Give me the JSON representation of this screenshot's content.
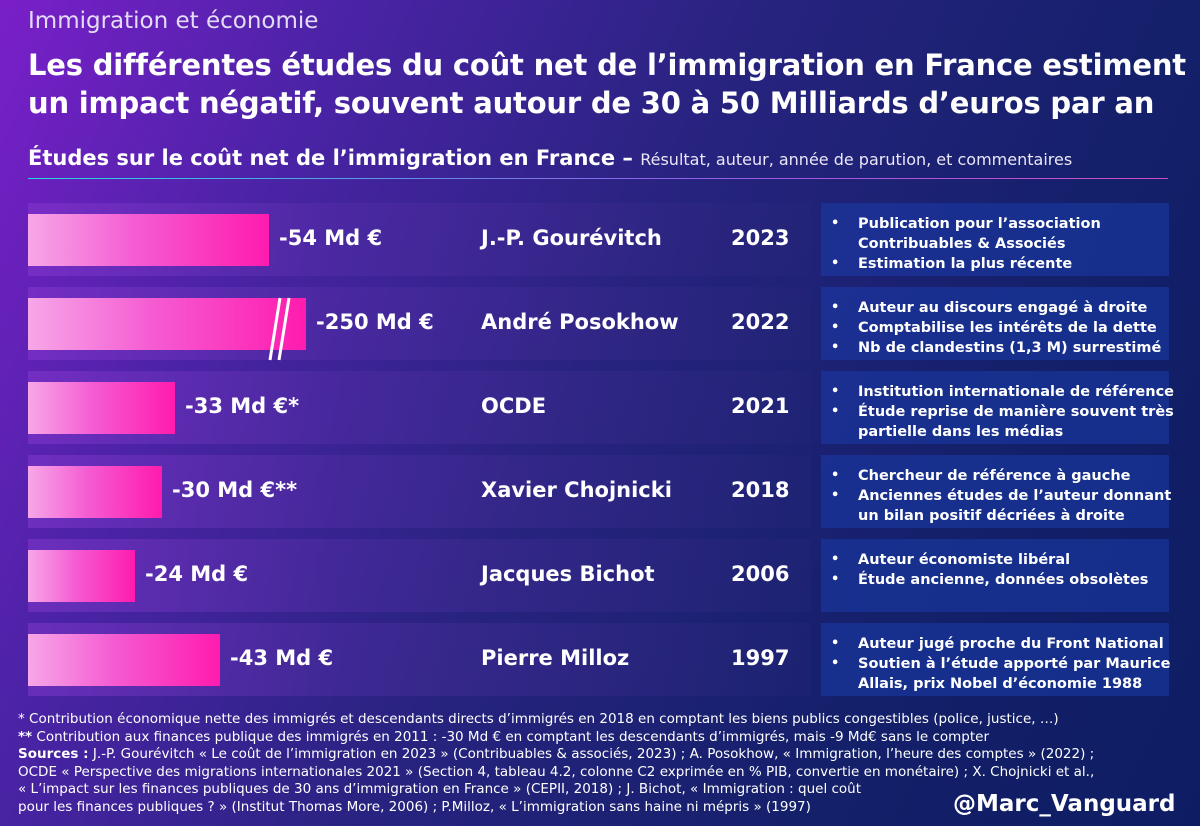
{
  "header": {
    "kicker": "Immigration et économie",
    "title": "Les différentes études du coût net de l’immigration en France estiment un impact négatif, souvent autour de 30 à 50 Milliards d’euros par an",
    "subtitle_main": "Études sur le coût net de l’immigration en France –",
    "subtitle_note": "Résultat, auteur, année de parution, et commentaires"
  },
  "colors": {
    "bar": "#ff1bae",
    "comment_box": "#1b3ca6",
    "background": "#14206a"
  },
  "chart_data": {
    "type": "bar",
    "orientation": "horizontal",
    "title": "Études sur le coût net de l’immigration en France",
    "unit": "Md €",
    "axis_break_on": "André Posokhow",
    "categories": [
      "J.-P. Gourévitch",
      "André Posokhow",
      "OCDE",
      "Xavier Chojnicki",
      "Jacques Bichot",
      "Pierre Milloz"
    ],
    "values": [
      -54,
      -250,
      -33,
      -30,
      -24,
      -43
    ],
    "value_labels": [
      "-54 Md €",
      "-250 Md €",
      "-33 Md €*",
      "-30 Md €**",
      "-24 Md €",
      "-43 Md €"
    ],
    "years": [
      "2023",
      "2022",
      "2021",
      "2018",
      "2006",
      "1997"
    ],
    "comments": [
      [
        "Publication pour l’association Contribuables & Associés",
        "Estimation la plus récente"
      ],
      [
        "Auteur au discours engagé à droite",
        "Comptabilise les intérêts de la dette",
        "Nb de clandestins (1,3 M) surrestimé"
      ],
      [
        "Institution internationale de référence",
        "Étude reprise de manière souvent très partielle dans les médias"
      ],
      [
        "Chercheur de référence à gauche",
        "Anciennes études de l’auteur donnant un bilan positif décriées à droite"
      ],
      [
        "Auteur économiste libéral",
        "Étude ancienne, données obsolètes"
      ],
      [
        "Auteur jugé proche du Front National",
        "Soutien à l’étude apporté par Maurice Allais, prix Nobel d’économie 1988"
      ]
    ]
  },
  "footer": {
    "note1": "* Contribution économique nette des immigrés et descendants directs d’immigrés en 2018 en comptant les biens publics congestibles (police, justice, …)",
    "note2_mark": "**",
    "note2": " Contribution aux finances publique des immigrés en 2011 : -30 Md € en comptant les descendants d’immigrés, mais -9 Md€ sans le compter",
    "sources_label": "Sources :",
    "sources_1": " J.-P. Gourévitch « Le coût de l’immigration en 2023 » (Contribuables & associés, 2023) ; A. Posokhow, « Immigration, l’heure des comptes » (2022) ;",
    "sources_2": "OCDE « Perspective des migrations internationales 2021 » (Section 4, tableau 4.2, colonne C2 exprimée en % PIB, convertie en monétaire) ; X. Chojnicki et al.,",
    "sources_3": "« L’impact sur les finances publiques de 30 ans d’immigration en France » (CEPII, 2018) ; J. Bichot, « Immigration : quel coût",
    "sources_4": "pour les finances publiques ? » (Institut Thomas More, 2006) ; P.Milloz, « L’immigration sans haine ni mépris » (1997)",
    "handle": "@Marc_Vanguard"
  }
}
